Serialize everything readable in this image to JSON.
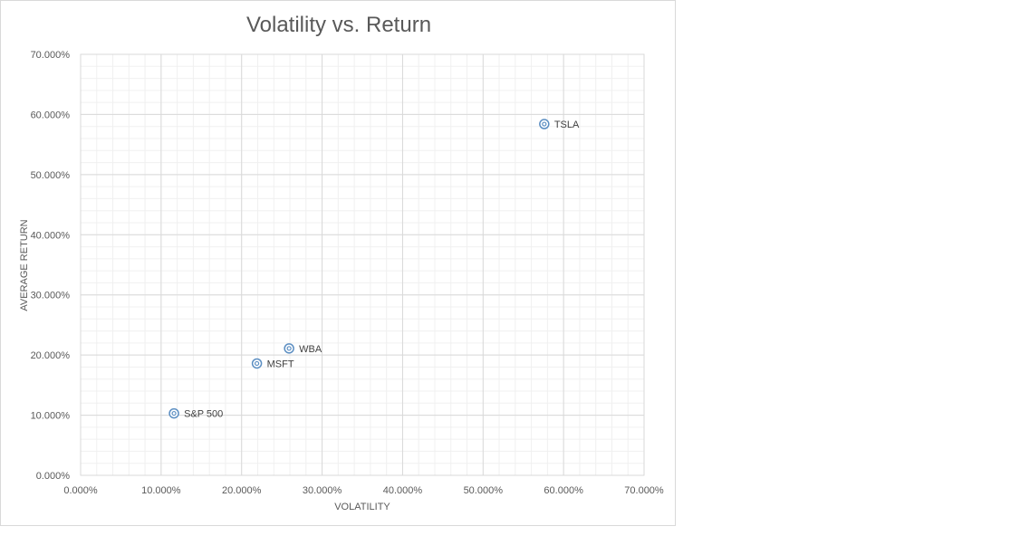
{
  "chart_data": {
    "type": "scatter",
    "title": "Volatility vs. Return",
    "xlabel": "VOLATILITY",
    "ylabel": "AVERAGE RETURN",
    "xlim": [
      0,
      0.7
    ],
    "ylim": [
      0,
      0.7
    ],
    "x_major_step": 0.1,
    "y_major_step": 0.1,
    "x_minor_step": 0.02,
    "y_minor_step": 0.02,
    "x_ticks": [
      "0.000%",
      "10.000%",
      "20.000%",
      "30.000%",
      "40.000%",
      "50.000%",
      "60.000%",
      "70.000%"
    ],
    "y_ticks": [
      "0.000%",
      "10.000%",
      "20.000%",
      "30.000%",
      "40.000%",
      "50.000%",
      "60.000%",
      "70.000%"
    ],
    "grid": "major-and-minor",
    "legend": "none",
    "marker_color": "#5b8ec2",
    "points": [
      {
        "label": "S&P 500",
        "x": 0.116,
        "y": 0.103
      },
      {
        "label": "MSFT",
        "x": 0.219,
        "y": 0.186
      },
      {
        "label": "WBA",
        "x": 0.259,
        "y": 0.211
      },
      {
        "label": "TSLA",
        "x": 0.576,
        "y": 0.584
      }
    ]
  }
}
